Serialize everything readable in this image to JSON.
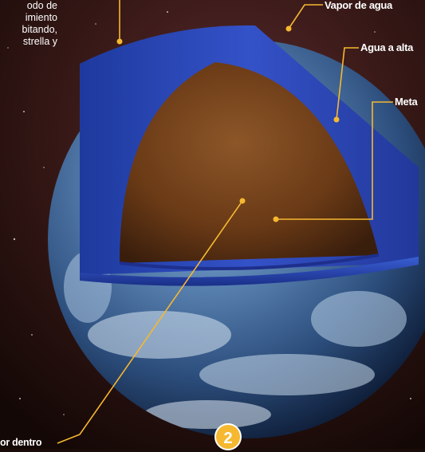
{
  "colors": {
    "leader": "#f5b830",
    "ocean": "#3d6fa8",
    "water_layer": "#2a46b8",
    "core": "#6a3a14",
    "space": "#1a0c08"
  },
  "intro_lines": [
    "odo de",
    "imiento",
    "bitando,",
    "strella y"
  ],
  "labels": {
    "vapor": "Vapor de agua",
    "water": "Agua a alta",
    "metal": "Meta",
    "inside": "or dentro"
  },
  "badge_number": "2"
}
